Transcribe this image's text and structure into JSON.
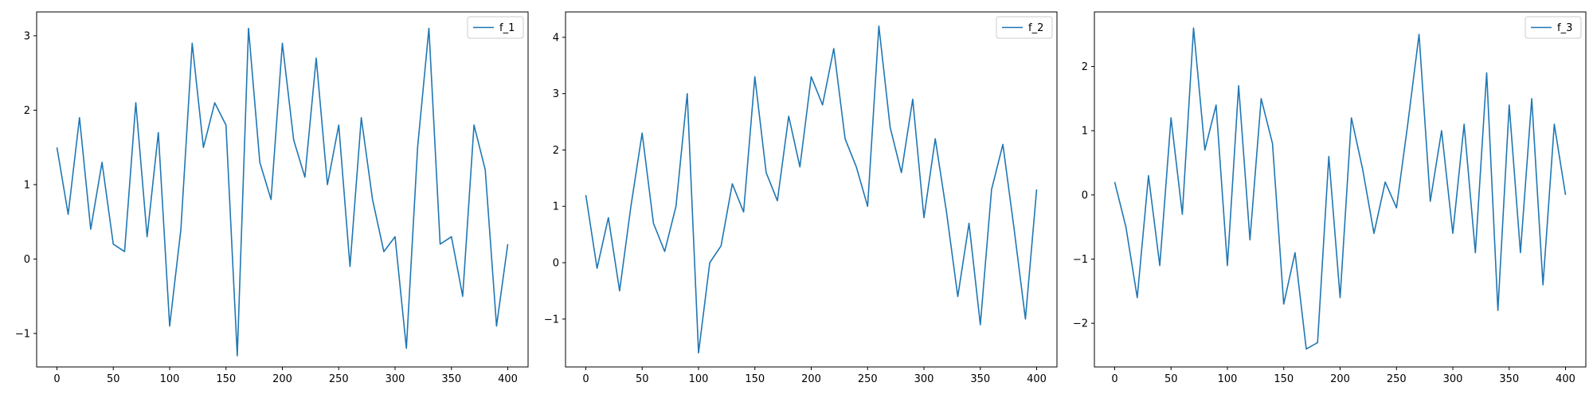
{
  "colors": {
    "line": "#1f77b4",
    "axes": "#000000",
    "background": "#ffffff"
  },
  "chart_data": [
    {
      "type": "line",
      "title": "",
      "xlabel": "",
      "ylabel": "",
      "xlim": [
        -18,
        418
      ],
      "ylim": [
        -1.45,
        3.32
      ],
      "x_ticks": [
        0,
        50,
        100,
        150,
        200,
        250,
        300,
        350,
        400
      ],
      "y_ticks": [
        -1,
        0,
        1,
        2,
        3
      ],
      "y_tick_labels": [
        "−1",
        "0",
        "1",
        "2",
        "3"
      ],
      "grid": false,
      "legend_position": "top-right",
      "series": [
        {
          "name": "f_1",
          "x": [
            0,
            10,
            20,
            30,
            40,
            50,
            60,
            70,
            80,
            90,
            100,
            110,
            120,
            130,
            140,
            150,
            160,
            170,
            180,
            190,
            200,
            210,
            220,
            230,
            240,
            250,
            260,
            270,
            280,
            290,
            300,
            310,
            320,
            330,
            340,
            350,
            360,
            370,
            380,
            390,
            400
          ],
          "y": [
            1.5,
            0.6,
            1.9,
            0.4,
            1.3,
            0.2,
            0.1,
            2.1,
            0.3,
            1.7,
            -0.9,
            0.4,
            2.9,
            1.5,
            2.1,
            1.8,
            -1.3,
            3.1,
            1.3,
            0.8,
            2.9,
            1.6,
            1.1,
            2.7,
            1.0,
            1.8,
            -0.1,
            1.9,
            0.8,
            0.1,
            0.3,
            -1.2,
            1.5,
            3.1,
            0.2,
            0.3,
            -0.5,
            1.8,
            1.2,
            -0.9,
            0.2
          ]
        }
      ]
    },
    {
      "type": "line",
      "title": "",
      "xlabel": "",
      "ylabel": "",
      "xlim": [
        -18,
        418
      ],
      "ylim": [
        -1.85,
        4.45
      ],
      "x_ticks": [
        0,
        50,
        100,
        150,
        200,
        250,
        300,
        350,
        400
      ],
      "y_ticks": [
        -1,
        0,
        1,
        2,
        3,
        4
      ],
      "y_tick_labels": [
        "−1",
        "0",
        "1",
        "2",
        "3",
        "4"
      ],
      "grid": false,
      "legend_position": "top-right",
      "series": [
        {
          "name": "f_2",
          "x": [
            0,
            10,
            20,
            30,
            40,
            50,
            60,
            70,
            80,
            90,
            100,
            110,
            120,
            130,
            140,
            150,
            160,
            170,
            180,
            190,
            200,
            210,
            220,
            230,
            240,
            250,
            260,
            270,
            280,
            290,
            300,
            310,
            320,
            330,
            340,
            350,
            360,
            370,
            380,
            390,
            400
          ],
          "y": [
            1.2,
            -0.1,
            0.8,
            -0.5,
            1.0,
            2.3,
            0.7,
            0.2,
            1.0,
            3.0,
            -1.6,
            0.0,
            0.3,
            1.4,
            0.9,
            3.3,
            1.6,
            1.1,
            2.6,
            1.7,
            3.3,
            2.8,
            3.8,
            2.2,
            1.7,
            1.0,
            4.2,
            2.4,
            1.6,
            2.9,
            0.8,
            2.2,
            0.9,
            -0.6,
            0.7,
            -1.1,
            1.3,
            2.1,
            0.6,
            -1.0,
            1.3
          ]
        }
      ]
    },
    {
      "type": "line",
      "title": "",
      "xlabel": "",
      "ylabel": "",
      "xlim": [
        -18,
        418
      ],
      "ylim": [
        -2.68,
        2.85
      ],
      "x_ticks": [
        0,
        50,
        100,
        150,
        200,
        250,
        300,
        350,
        400
      ],
      "y_ticks": [
        -2,
        -1,
        0,
        1,
        2
      ],
      "y_tick_labels": [
        "−2",
        "−1",
        "0",
        "1",
        "2"
      ],
      "grid": false,
      "legend_position": "top-right",
      "series": [
        {
          "name": "f_3",
          "x": [
            0,
            10,
            20,
            30,
            40,
            50,
            60,
            70,
            80,
            90,
            100,
            110,
            120,
            130,
            140,
            150,
            160,
            170,
            180,
            190,
            200,
            210,
            220,
            230,
            240,
            250,
            260,
            270,
            280,
            290,
            300,
            310,
            320,
            330,
            340,
            350,
            360,
            370,
            380,
            390,
            400
          ],
          "y": [
            0.2,
            -0.5,
            -1.6,
            0.3,
            -1.1,
            1.2,
            -0.3,
            2.6,
            0.7,
            1.4,
            -1.1,
            1.7,
            -0.7,
            1.5,
            0.8,
            -1.7,
            -0.9,
            -2.4,
            -2.3,
            0.6,
            -1.6,
            1.2,
            0.4,
            -0.6,
            0.2,
            -0.2,
            1.1,
            2.5,
            -0.1,
            1.0,
            -0.6,
            1.1,
            -0.9,
            1.9,
            -1.8,
            1.4,
            -0.9,
            1.5,
            -1.4,
            1.1,
            0.0
          ]
        }
      ]
    }
  ]
}
